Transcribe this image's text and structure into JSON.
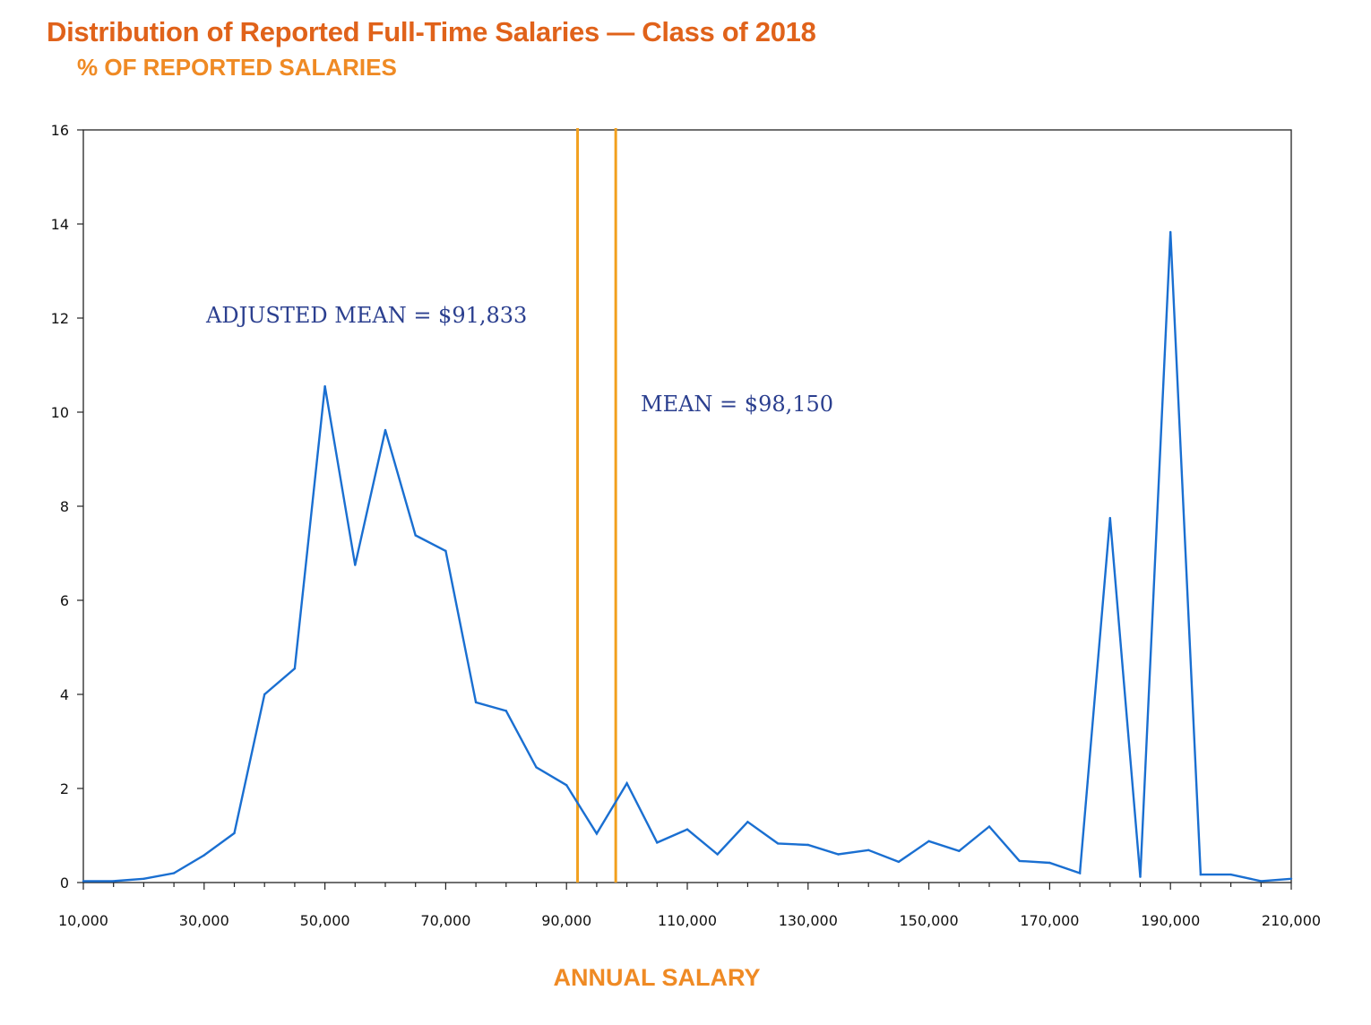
{
  "chart_data": {
    "type": "line",
    "title": "Distribution of Reported Full-Time Salaries — Class of 2018",
    "ylabel": "% OF REPORTED SALARIES",
    "xlabel": "ANNUAL SALARY",
    "xlim": [
      10000,
      210000
    ],
    "ylim": [
      0,
      16
    ],
    "grid": false,
    "x_ticks": [
      "10,000",
      "30,000",
      "50,000",
      "70,000",
      "90,000",
      "110,000",
      "130,000",
      "150,000",
      "170,000",
      "190,000",
      "210,000"
    ],
    "y_ticks": [
      "0",
      "2",
      "4",
      "6",
      "8",
      "10",
      "12",
      "14",
      "16"
    ],
    "x": [
      10000,
      15000,
      20000,
      25000,
      30000,
      35000,
      40000,
      45000,
      50000,
      55000,
      60000,
      65000,
      70000,
      75000,
      80000,
      85000,
      90000,
      95000,
      100000,
      105000,
      110000,
      115000,
      120000,
      125000,
      130000,
      135000,
      140000,
      145000,
      150000,
      155000,
      160000,
      165000,
      170000,
      175000,
      180000,
      185000,
      190000,
      195000,
      200000,
      205000,
      210000
    ],
    "series": [
      {
        "color": "#1a6fd1",
        "values": [
          0.03,
          0.03,
          0.08,
          0.2,
          0.58,
          1.05,
          4.0,
          4.55,
          10.55,
          6.75,
          9.62,
          7.38,
          7.05,
          3.83,
          3.65,
          2.45,
          2.07,
          1.04,
          2.11,
          0.85,
          1.13,
          0.6,
          1.29,
          0.83,
          0.8,
          0.6,
          0.69,
          0.44,
          0.88,
          0.67,
          1.19,
          0.46,
          0.42,
          0.2,
          7.75,
          0.12,
          13.83,
          0.17,
          0.17,
          0.03,
          0.08
        ]
      }
    ],
    "reference_lines": [
      {
        "x": 91833,
        "label": "ADJUSTED MEAN = $91,833",
        "color": "#f2a01e"
      },
      {
        "x": 98150,
        "label": "MEAN = $98,150",
        "color": "#f2a01e"
      }
    ]
  }
}
